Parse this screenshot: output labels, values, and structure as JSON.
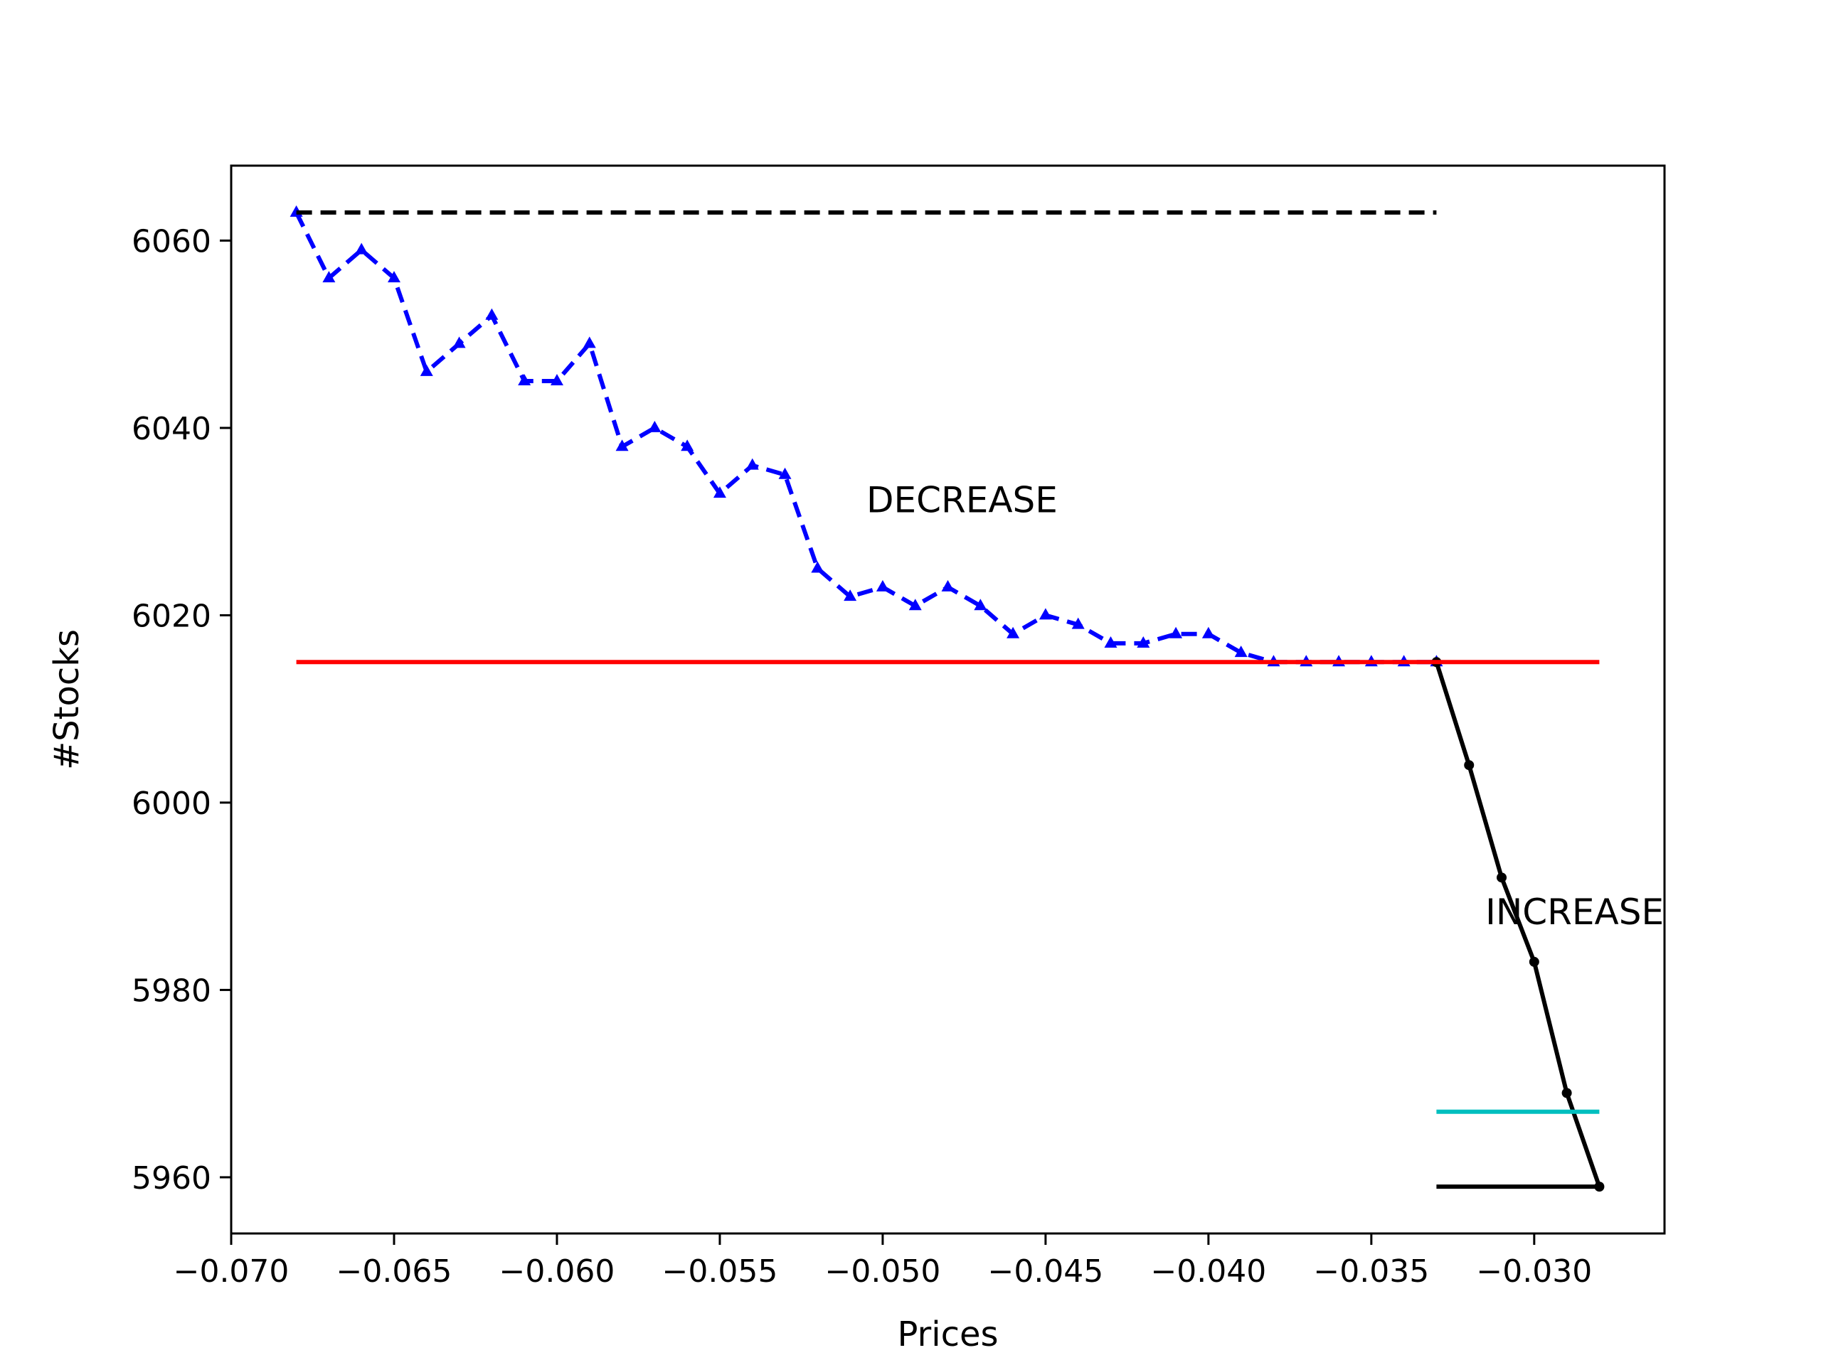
{
  "chart_data": {
    "type": "line",
    "xlabel": "Prices",
    "ylabel": "#Stocks",
    "xlim": [
      -0.07,
      -0.026
    ],
    "ylim": [
      5954,
      6068
    ],
    "grid": false,
    "x_ticks": [
      -0.07,
      -0.065,
      -0.06,
      -0.055,
      -0.05,
      -0.045,
      -0.04,
      -0.035,
      -0.03
    ],
    "x_tick_labels": [
      "−0.070",
      "−0.065",
      "−0.060",
      "−0.055",
      "−0.050",
      "−0.045",
      "−0.040",
      "−0.035",
      "−0.030"
    ],
    "y_ticks": [
      5960,
      5980,
      6000,
      6020,
      6040,
      6060
    ],
    "y_tick_labels": [
      "5960",
      "5980",
      "6000",
      "6020",
      "6040",
      "6060"
    ],
    "annotations": [
      {
        "text": "DECREASE",
        "x": -0.0505,
        "y": 6031
      },
      {
        "text": "INCREASE",
        "x": -0.0315,
        "y": 5987
      }
    ],
    "series": [
      {
        "color": "#0000ff",
        "style": "dashed",
        "marker": "triangle",
        "x": [
          -0.068,
          -0.067,
          -0.066,
          -0.065,
          -0.064,
          -0.063,
          -0.062,
          -0.061,
          -0.06,
          -0.059,
          -0.058,
          -0.057,
          -0.056,
          -0.055,
          -0.054,
          -0.053,
          -0.052,
          -0.051,
          -0.05,
          -0.049,
          -0.048,
          -0.047,
          -0.046,
          -0.045,
          -0.044,
          -0.043,
          -0.042,
          -0.041,
          -0.04,
          -0.039,
          -0.038,
          -0.037,
          -0.036,
          -0.035,
          -0.034,
          -0.033
        ],
        "y": [
          6063,
          6056,
          6059,
          6056,
          6046,
          6049,
          6052,
          6045,
          6045,
          6049,
          6038,
          6040,
          6038,
          6033,
          6036,
          6035,
          6025,
          6022,
          6023,
          6021,
          6023,
          6021,
          6018,
          6020,
          6019,
          6017,
          6017,
          6018,
          6018,
          6016,
          6015,
          6015,
          6015,
          6015,
          6015,
          6015
        ]
      },
      {
        "color": "#000000",
        "style": "solid",
        "marker": "dot",
        "x": [
          -0.033,
          -0.032,
          -0.031,
          -0.03,
          -0.029,
          -0.028
        ],
        "y": [
          6015,
          6004,
          5992,
          5983,
          5969,
          5959
        ]
      },
      {
        "color": "#000000",
        "style": "dashed",
        "marker": "none",
        "x": [
          -0.068,
          -0.033
        ],
        "y": [
          6063,
          6063
        ]
      },
      {
        "color": "#ff0000",
        "style": "solid",
        "marker": "none",
        "x": [
          -0.068,
          -0.028
        ],
        "y": [
          6015,
          6015
        ]
      },
      {
        "color": "#00bfbf",
        "style": "solid",
        "marker": "none",
        "x": [
          -0.033,
          -0.028
        ],
        "y": [
          5967,
          5967
        ]
      },
      {
        "color": "#000000",
        "style": "solid",
        "marker": "none",
        "x": [
          -0.033,
          -0.028
        ],
        "y": [
          5959,
          5959
        ]
      }
    ]
  }
}
